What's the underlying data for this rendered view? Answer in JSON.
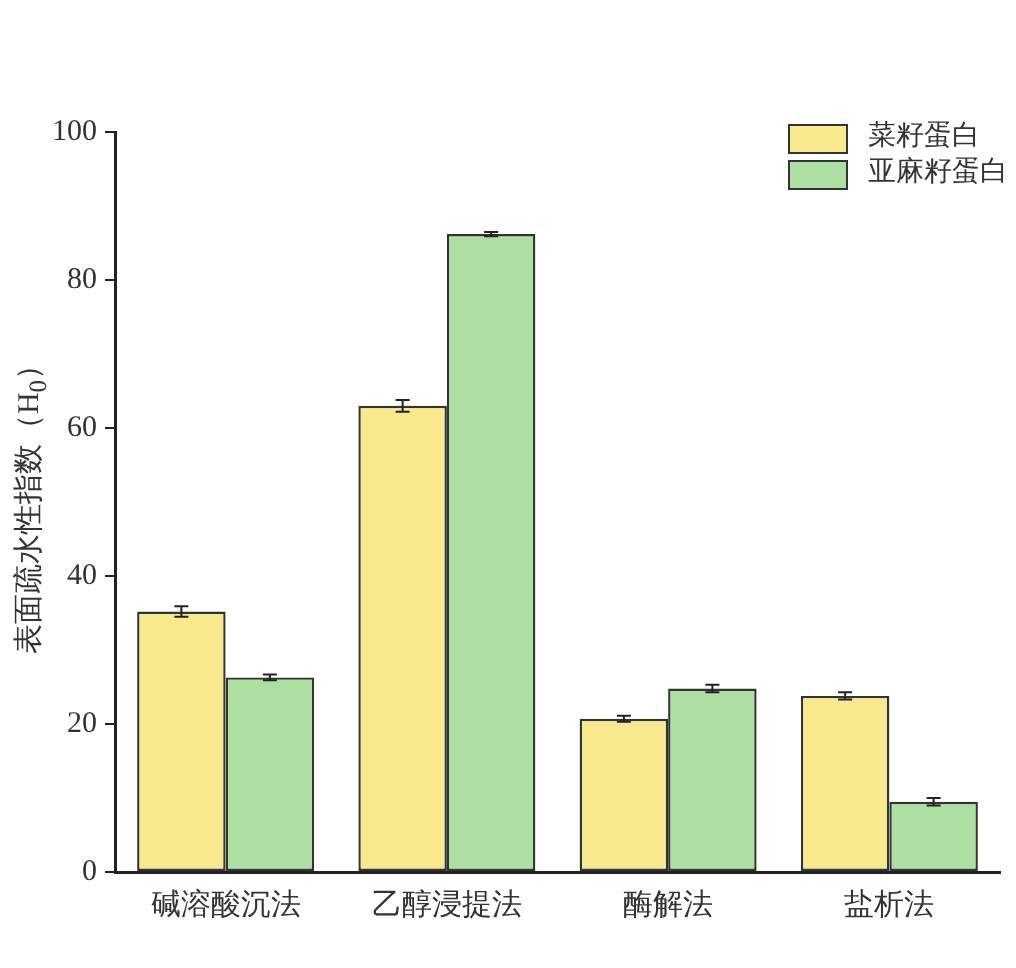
{
  "chart_data": {
    "type": "bar",
    "ylabel": "表面疏水性指数（H$_{0}$）",
    "categories": [
      "碱溶酸沉法",
      "乙醇浸提法",
      "酶解法",
      "盐析法"
    ],
    "series": [
      {
        "name": "菜籽蛋白",
        "color": "#f8e98c",
        "values": [
          35.2,
          63.0,
          20.7,
          23.8
        ],
        "errors": [
          0.7,
          0.8,
          0.4,
          0.5
        ]
      },
      {
        "name": "亚麻籽蛋白",
        "color": "#addfa3",
        "values": [
          26.3,
          86.2,
          24.8,
          9.5
        ],
        "errors": [
          0.4,
          0.3,
          0.5,
          0.5
        ]
      }
    ],
    "ylim": [
      0,
      100
    ],
    "yticks": [
      0,
      20,
      40,
      60,
      80,
      100
    ],
    "grid": false,
    "legend": "top right"
  }
}
